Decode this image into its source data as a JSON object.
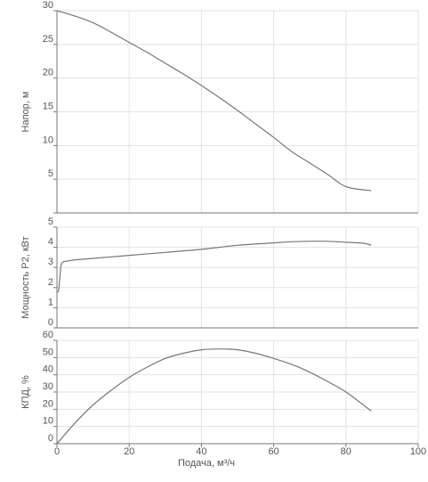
{
  "chart_data": [
    {
      "type": "line",
      "ylabel": "Напор, м",
      "xlim": [
        0,
        100
      ],
      "ylim": [
        0,
        30
      ],
      "yticks": [
        0,
        5,
        10,
        15,
        20,
        25,
        30
      ],
      "ytick_labels": [
        "",
        "5",
        "10",
        "15",
        "20",
        "25",
        "30"
      ],
      "grid": true,
      "series": [
        {
          "color": "#777777",
          "x": [
            0,
            5,
            10,
            15,
            20,
            25,
            30,
            35,
            40,
            45,
            50,
            55,
            60,
            65,
            70,
            75,
            80,
            87
          ],
          "y": [
            30,
            29.2,
            28.2,
            26.8,
            25.3,
            23.8,
            22.2,
            20.6,
            18.9,
            17.1,
            15.2,
            13.2,
            11.2,
            9.1,
            7.4,
            5.7,
            3.9,
            3.3
          ]
        }
      ]
    },
    {
      "type": "line",
      "ylabel": "Мощность P2, кВт",
      "xlim": [
        0,
        100
      ],
      "ylim": [
        0,
        5
      ],
      "yticks": [
        0,
        1,
        2,
        3,
        4,
        5
      ],
      "ytick_labels": [
        "0",
        "1",
        "2",
        "3",
        "4",
        "5"
      ],
      "grid": true,
      "series": [
        {
          "color": "#777777",
          "x": [
            0,
            0.5,
            1,
            1.5,
            3,
            5,
            10,
            20,
            30,
            40,
            50,
            60,
            65,
            70,
            75,
            80,
            85,
            87
          ],
          "y": [
            1.8,
            1.9,
            2.9,
            3.25,
            3.32,
            3.38,
            3.45,
            3.6,
            3.75,
            3.9,
            4.1,
            4.22,
            4.28,
            4.3,
            4.3,
            4.25,
            4.2,
            4.1
          ]
        }
      ]
    },
    {
      "type": "line",
      "ylabel": "КПД, %",
      "xlabel": "Подача, м³/ч",
      "xlim": [
        0,
        100
      ],
      "xticks": [
        0,
        20,
        40,
        60,
        80,
        100
      ],
      "xtick_labels": [
        "0",
        "20",
        "40",
        "60",
        "80",
        "100"
      ],
      "ylim": [
        0,
        60
      ],
      "yticks": [
        0,
        10,
        20,
        30,
        40,
        50,
        60
      ],
      "ytick_labels": [
        "0",
        "10",
        "20",
        "30",
        "40",
        "50",
        "60"
      ],
      "grid": true,
      "series": [
        {
          "color": "#777777",
          "x": [
            0,
            5,
            10,
            15,
            20,
            25,
            30,
            35,
            40,
            45,
            50,
            55,
            60,
            65,
            70,
            75,
            80,
            87
          ],
          "y": [
            0,
            12,
            22.5,
            31,
            38.5,
            44.5,
            49.5,
            52.5,
            54.5,
            55,
            54.5,
            52.5,
            49.5,
            46,
            41.5,
            36,
            30,
            19
          ]
        }
      ]
    }
  ]
}
